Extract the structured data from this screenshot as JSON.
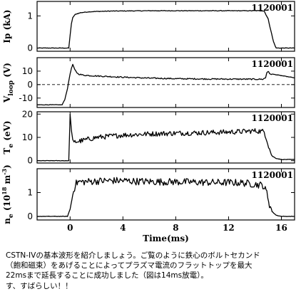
{
  "chart_data": [
    {
      "type": "line",
      "shot": "1120001",
      "ylabel": "Ip (kA)",
      "ylim": [
        -0.1,
        1.45
      ],
      "yticks": [
        0,
        1
      ],
      "xlim": [
        -2.5,
        17
      ],
      "color": "#000000",
      "series": [
        {
          "x": [
            -2.5,
            -0.1,
            0.0,
            0.1,
            0.2,
            0.4,
            0.8,
            1.5,
            3,
            6,
            10,
            13,
            14.5,
            14.7,
            15.0,
            15.2,
            15.4,
            15.6,
            17
          ],
          "y": [
            0,
            0,
            0.4,
            0.75,
            0.95,
            1.05,
            1.1,
            1.13,
            1.15,
            1.16,
            1.16,
            1.16,
            1.16,
            1.15,
            0.9,
            0.55,
            0.2,
            0,
            0
          ]
        }
      ]
    },
    {
      "type": "line",
      "shot": "1120001",
      "ylabel": "V_loop (V)",
      "ylim": [
        -17,
        20
      ],
      "yticks": [
        -10,
        0,
        10
      ],
      "xlim": [
        -2.5,
        17
      ],
      "zero_line": "dashed",
      "series": [
        {
          "x": [
            -2.5,
            -0.6,
            -0.4,
            -0.2,
            0.0,
            0.1,
            0.2,
            0.35,
            0.6,
            1.0,
            2,
            4,
            6,
            8,
            10,
            12,
            14,
            14.6,
            14.8,
            14.9,
            15.0,
            15.1,
            15.5,
            17
          ],
          "y": [
            -15,
            -15,
            -11,
            -3,
            8,
            12,
            15,
            11,
            8,
            7,
            6.4,
            5.5,
            4.8,
            4.4,
            4.2,
            4.1,
            4.0,
            4.0,
            5,
            9,
            10,
            8,
            7.5,
            5
          ]
        }
      ]
    },
    {
      "type": "line",
      "shot": "1120001",
      "ylabel": "T_e (eV)",
      "ylim": [
        -1,
        21
      ],
      "yticks": [
        0,
        10,
        20
      ],
      "xlim": [
        -2.5,
        17
      ],
      "series": [
        {
          "x": [
            -2.5,
            -0.3,
            -0.1,
            0.0,
            0.1,
            0.2,
            0.3,
            0.5,
            0.8,
            1.2,
            2,
            4,
            6,
            8,
            10,
            12,
            13,
            14,
            14.7,
            14.9,
            15.1,
            15.3,
            15.6,
            16,
            17
          ],
          "y": [
            0,
            0,
            0,
            20,
            13,
            9,
            8,
            8.2,
            8.5,
            9,
            10,
            11,
            11.5,
            11.8,
            12,
            12.3,
            12.5,
            12.8,
            12.5,
            9,
            5,
            2,
            1,
            0.5,
            0.5
          ]
        }
      ]
    },
    {
      "type": "line",
      "shot": "1120001",
      "ylabel": "n_e (10^18 m^-3)",
      "ylim": [
        -0.15,
        2.0
      ],
      "yticks": [
        0,
        1
      ],
      "xlim": [
        -2.5,
        17
      ],
      "xticks": [
        0,
        4,
        8,
        12,
        16
      ],
      "xlabel": "Time(ms)",
      "series": [
        {
          "x": [
            -2.5,
            -0.2,
            0.0,
            0.2,
            0.4,
            0.6,
            1,
            2,
            3,
            4,
            5,
            6,
            7,
            8,
            9,
            10,
            11,
            12,
            13,
            14,
            14.6,
            14.9,
            15.1,
            15.3,
            15.6,
            16,
            17
          ],
          "y": [
            0,
            0,
            0.3,
            0.9,
            1.35,
            1.45,
            1.45,
            1.48,
            1.5,
            1.5,
            1.47,
            1.46,
            1.45,
            1.45,
            1.44,
            1.43,
            1.42,
            1.42,
            1.41,
            1.35,
            1.3,
            1.0,
            0.5,
            0.2,
            0.05,
            0.0,
            0.0
          ]
        }
      ]
    }
  ],
  "caption": [
    "CSTN-IVの基本波形を紹介しましょう。ご覧のように鉄心のボルトセカンド",
    "（飽和磁束）をあげることによってプラズマ電流のフラットトップを最大",
    "22msまで延長することに成功しました（図は14ms放電）。",
    "す、すばらしい！！"
  ]
}
